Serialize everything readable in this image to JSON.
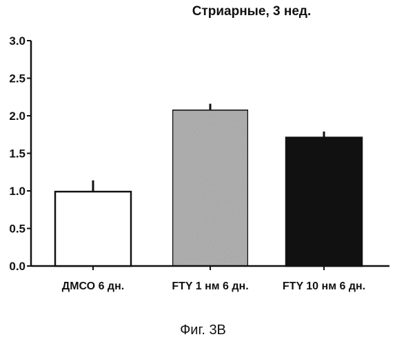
{
  "chart_data": {
    "type": "bar",
    "title": "Стриарные, 3 нед.",
    "categories": [
      "ДМСО 6 дн.",
      "FTY 1 нм 6 дн.",
      "FTY 10 нм 6 дн."
    ],
    "values": [
      0.99,
      2.08,
      1.71
    ],
    "errors": [
      0.15,
      0.08,
      0.08
    ],
    "bar_fills": [
      "#ffffff",
      "#b5b5b5",
      "#111111"
    ],
    "ylim": [
      0,
      3.0
    ],
    "yticks": [
      "0.0",
      "0.5",
      "1.0",
      "1.5",
      "2.0",
      "2.5",
      "3.0"
    ],
    "xlabel": "",
    "ylabel": "",
    "grid": false
  },
  "caption": "Фиг. 3В"
}
